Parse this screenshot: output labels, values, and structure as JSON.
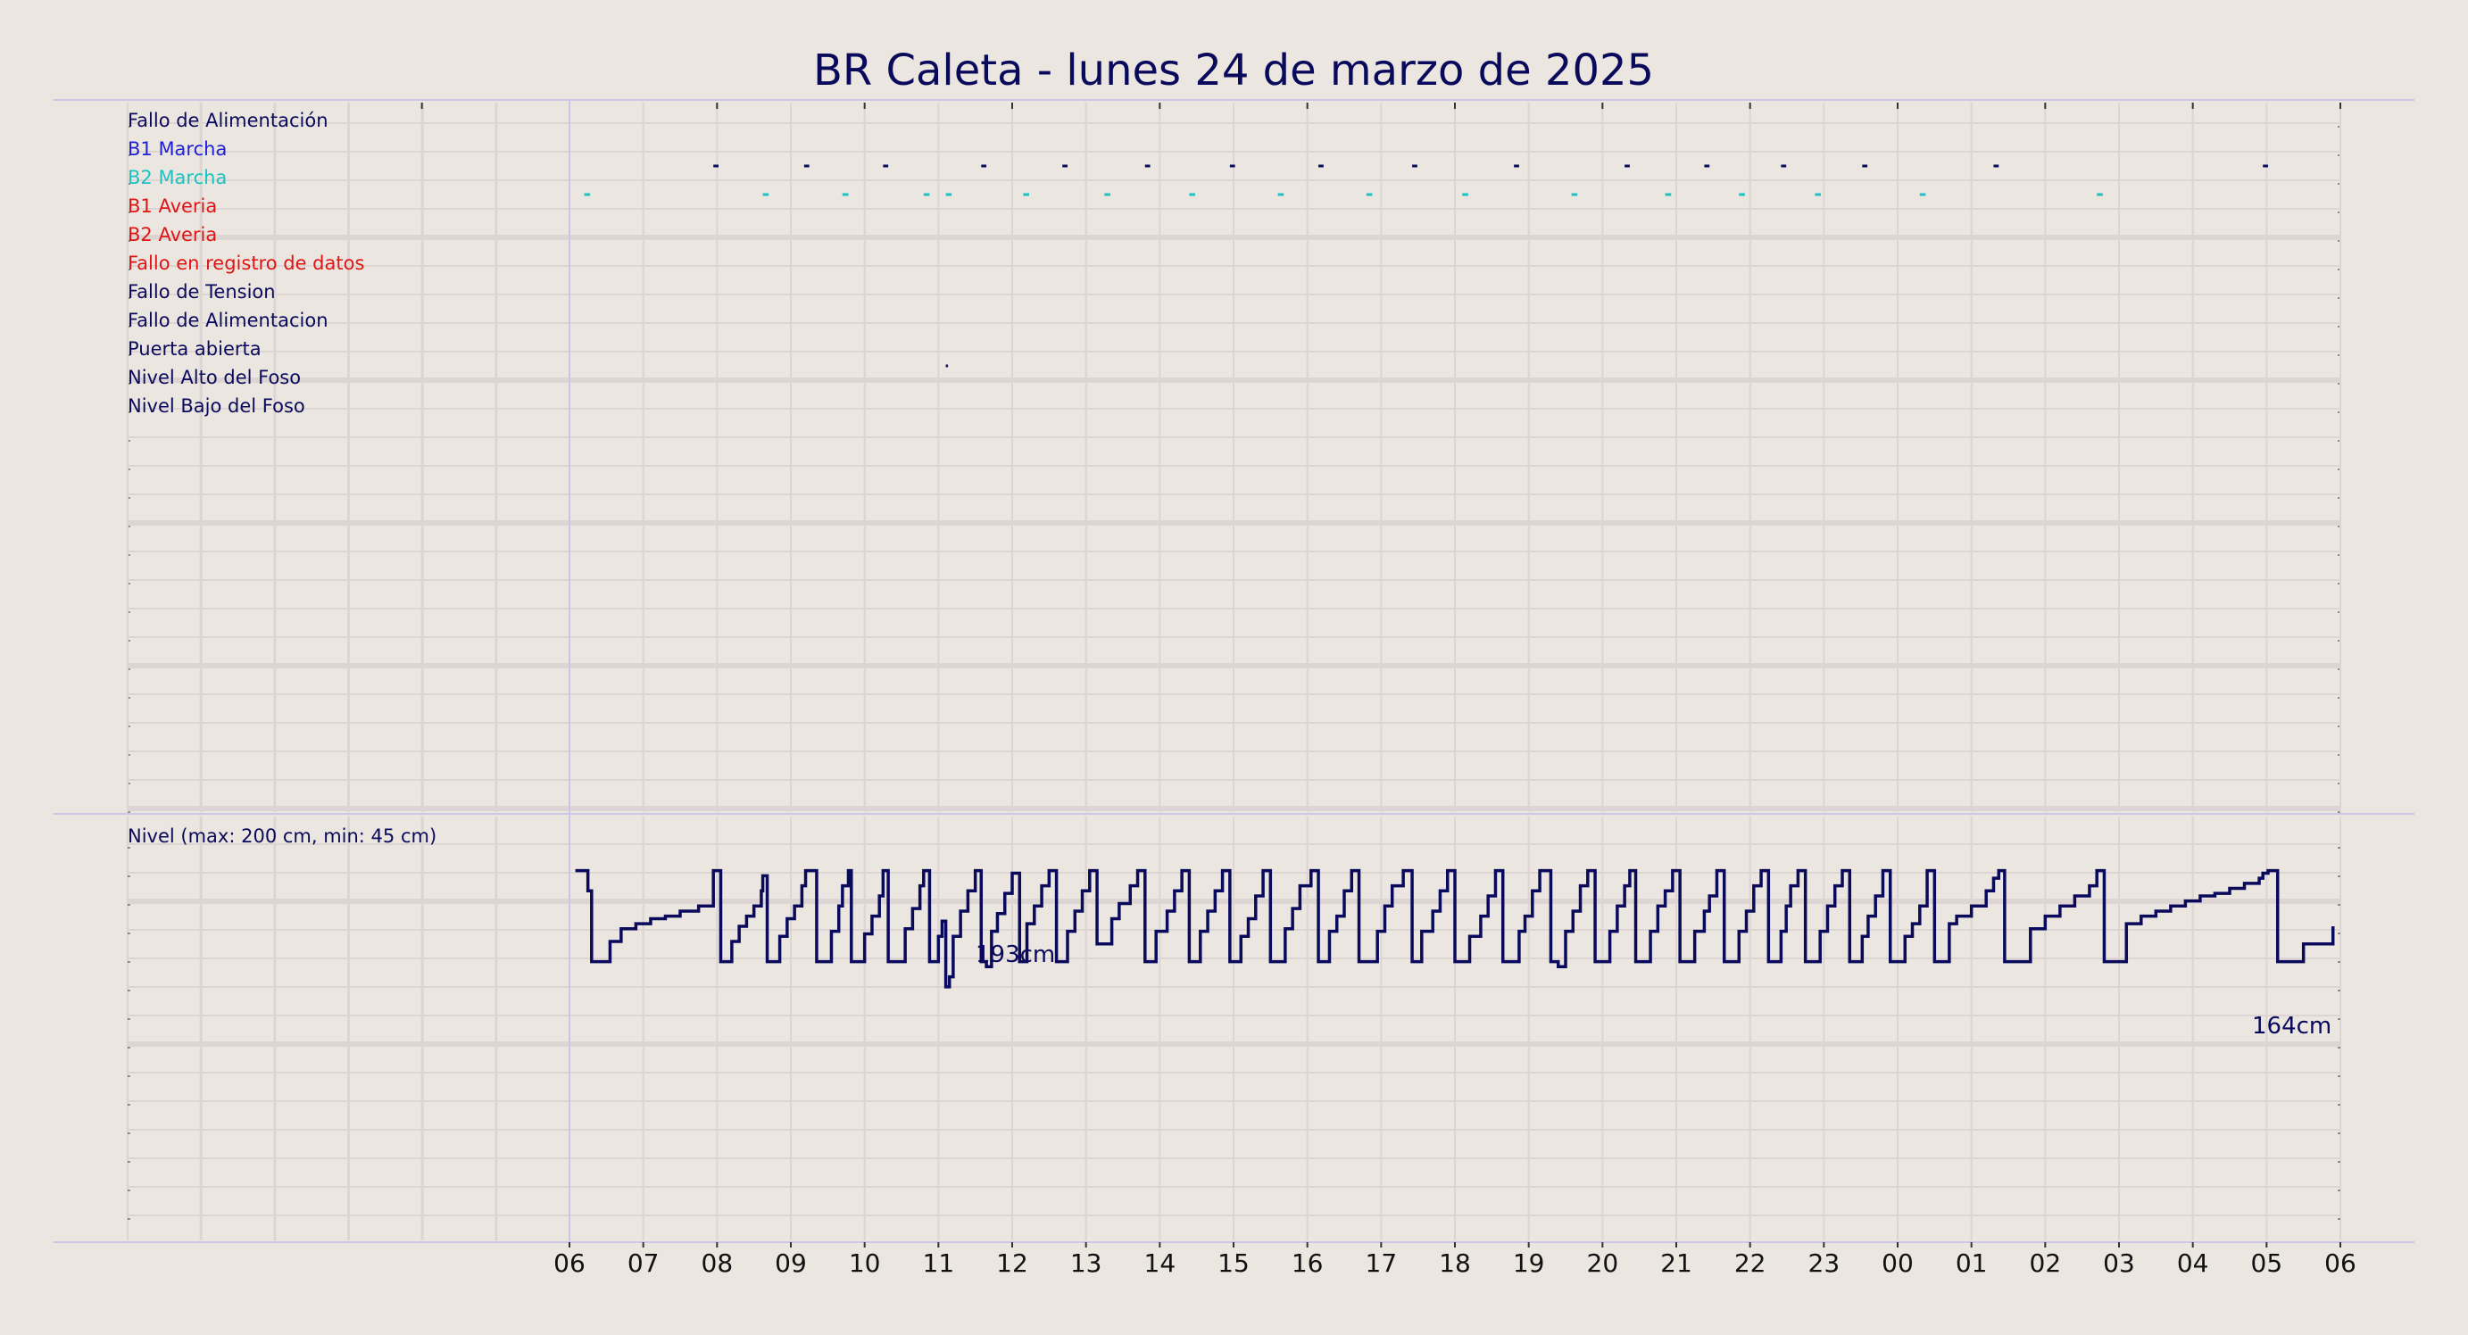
{
  "title": "BR Caleta   -   lunes 24 de marzo de 2025",
  "colors": {
    "background": "#ebe6e0",
    "grid": "#dcd5d3",
    "frame": "#c9c6e6",
    "navy": "#0a0a5c",
    "blue": "#1f1fd6",
    "cyan": "#1cc2c2",
    "red": "#e01414"
  },
  "chart_data": [
    {
      "type": "event-timeline",
      "x_ticks": [
        "06",
        "07",
        "08",
        "09",
        "10",
        "11",
        "12",
        "13",
        "14",
        "15",
        "16",
        "17",
        "18",
        "19",
        "20",
        "21",
        "22",
        "23",
        "00",
        "01",
        "02",
        "03",
        "04",
        "05",
        "06"
      ],
      "x_range_hours": [
        0,
        24
      ],
      "signals": [
        {
          "name": "Fallo de Alimentación",
          "color": "navy",
          "events": []
        },
        {
          "name": "B1 Marcha",
          "color": "navy",
          "events": [
            [
              1.95,
              2.02
            ],
            [
              3.18,
              3.25
            ],
            [
              4.25,
              4.32
            ],
            [
              5.58,
              5.65
            ],
            [
              6.68,
              6.75
            ],
            [
              7.8,
              7.87
            ],
            [
              8.95,
              9.02
            ],
            [
              10.15,
              10.22
            ],
            [
              11.42,
              11.49
            ],
            [
              12.8,
              12.87
            ],
            [
              14.3,
              14.37
            ],
            [
              15.38,
              15.45
            ],
            [
              16.42,
              16.49
            ],
            [
              17.52,
              17.59
            ],
            [
              19.3,
              19.37
            ],
            [
              22.95,
              23.02
            ]
          ]
        },
        {
          "name": "B2 Marcha",
          "color": "cyan",
          "events": [
            [
              0.2,
              0.28
            ],
            [
              2.62,
              2.7
            ],
            [
              3.7,
              3.78
            ],
            [
              4.8,
              4.88
            ],
            [
              5.1,
              5.18
            ],
            [
              6.15,
              6.23
            ],
            [
              7.25,
              7.33
            ],
            [
              8.4,
              8.48
            ],
            [
              9.6,
              9.68
            ],
            [
              10.8,
              10.88
            ],
            [
              12.1,
              12.18
            ],
            [
              13.58,
              13.66
            ],
            [
              14.85,
              14.93
            ],
            [
              15.85,
              15.93
            ],
            [
              16.88,
              16.96
            ],
            [
              18.3,
              18.38
            ],
            [
              20.7,
              20.78
            ]
          ]
        },
        {
          "name": "B1 Averia",
          "color": "red",
          "events": []
        },
        {
          "name": "B2 Averia",
          "color": "red",
          "events": []
        },
        {
          "name": "Fallo en registro de datos",
          "color": "red",
          "events": []
        },
        {
          "name": "Fallo de Tension",
          "color": "navy",
          "events": []
        },
        {
          "name": "Fallo de Alimentacion",
          "color": "navy",
          "events": []
        },
        {
          "name": "Puerta abierta",
          "color": "navy",
          "events": [
            [
              5.1,
              5.13
            ]
          ]
        },
        {
          "name": "Nivel Alto del Foso",
          "color": "navy",
          "events": []
        },
        {
          "name": "Nivel Bajo del Foso",
          "color": "navy",
          "events": []
        }
      ]
    },
    {
      "type": "line",
      "label": "Nivel (max: 200 cm, min: 45 cm)",
      "y_range_cm": [
        45,
        200
      ],
      "max_label": "193cm",
      "last_label": "164cm",
      "series_time_h": [
        0.08,
        0.2,
        0.25,
        0.3,
        0.45,
        0.55,
        0.7,
        0.9,
        1.1,
        1.3,
        1.5,
        1.75,
        1.95,
        1.98,
        2.05,
        2.1,
        2.2,
        2.3,
        2.4,
        2.5,
        2.6,
        2.62,
        2.68,
        2.75,
        2.85,
        2.95,
        3.05,
        3.15,
        3.2,
        3.27,
        3.35,
        3.45,
        3.55,
        3.65,
        3.7,
        3.78,
        3.82,
        3.9,
        4.0,
        4.1,
        4.2,
        4.25,
        4.32,
        4.45,
        4.55,
        4.65,
        4.75,
        4.8,
        4.88,
        4.95,
        5.0,
        5.05,
        5.1,
        5.15,
        5.2,
        5.3,
        5.4,
        5.5,
        5.58,
        5.65,
        5.72,
        5.8,
        5.9,
        6.0,
        6.1,
        6.15,
        6.2,
        6.3,
        6.4,
        6.5,
        6.6,
        6.68,
        6.75,
        6.85,
        6.95,
        7.05,
        7.15,
        7.25,
        7.35,
        7.45,
        7.6,
        7.7,
        7.8,
        7.87,
        7.95,
        8.1,
        8.2,
        8.3,
        8.4,
        8.45,
        8.55,
        8.65,
        8.75,
        8.85,
        8.95,
        9.02,
        9.1,
        9.2,
        9.3,
        9.4,
        9.5,
        9.6,
        9.7,
        9.8,
        9.9,
        10.05,
        10.15,
        10.22,
        10.3,
        10.4,
        10.5,
        10.6,
        10.7,
        10.85,
        10.95,
        11.05,
        11.15,
        11.3,
        11.42,
        11.49,
        11.55,
        11.7,
        11.8,
        11.9,
        12.0,
        12.1,
        12.2,
        12.35,
        12.45,
        12.55,
        12.65,
        12.8,
        12.87,
        12.95,
        13.05,
        13.15,
        13.3,
        13.4,
        13.5,
        13.6,
        13.7,
        13.8,
        13.9,
        14.0,
        14.1,
        14.2,
        14.3,
        14.37,
        14.45,
        14.55,
        14.65,
        14.75,
        14.85,
        14.95,
        15.05,
        15.15,
        15.25,
        15.38,
        15.45,
        15.55,
        15.65,
        15.75,
        15.85,
        15.95,
        16.05,
        16.15,
        16.25,
        16.35,
        16.42,
        16.49,
        16.55,
        16.65,
        16.75,
        16.85,
        16.95,
        17.05,
        17.15,
        17.25,
        17.35,
        17.45,
        17.52,
        17.6,
        17.7,
        17.8,
        17.9,
        18.0,
        18.1,
        18.2,
        18.3,
        18.4,
        18.5,
        18.6,
        18.7,
        18.8,
        19.0,
        19.2,
        19.3,
        19.37,
        19.45,
        19.6,
        19.8,
        20.0,
        20.2,
        20.4,
        20.6,
        20.7,
        20.8,
        20.9,
        21.1,
        21.3,
        21.5,
        21.7,
        21.9,
        22.1,
        22.3,
        22.5,
        22.7,
        22.9,
        22.95,
        23.02,
        23.15,
        23.3,
        23.5,
        23.7,
        23.9
      ],
      "series_level_cm": [
        186,
        186,
        178,
        150,
        150,
        158,
        163,
        165,
        167,
        168,
        170,
        172,
        186,
        186,
        150,
        150,
        158,
        164,
        168,
        172,
        178,
        184,
        150,
        150,
        160,
        167,
        172,
        180,
        186,
        186,
        150,
        150,
        162,
        172,
        180,
        186,
        150,
        150,
        161,
        168,
        176,
        186,
        150,
        150,
        163,
        171,
        180,
        186,
        150,
        150,
        160,
        166,
        140,
        144,
        160,
        170,
        178,
        186,
        150,
        148,
        162,
        169,
        177,
        185,
        150,
        150,
        165,
        172,
        180,
        186,
        150,
        150,
        162,
        170,
        178,
        186,
        157,
        157,
        167,
        173,
        180,
        186,
        150,
        150,
        162,
        170,
        178,
        186,
        150,
        150,
        162,
        170,
        178,
        186,
        150,
        150,
        160,
        167,
        176,
        186,
        150,
        150,
        163,
        171,
        180,
        186,
        150,
        150,
        162,
        168,
        178,
        186,
        150,
        150,
        162,
        172,
        180,
        186,
        150,
        150,
        162,
        170,
        178,
        186,
        150,
        150,
        160,
        168,
        176,
        186,
        150,
        150,
        162,
        168,
        178,
        186,
        150,
        148,
        162,
        170,
        180,
        186,
        150,
        150,
        162,
        172,
        180,
        186,
        150,
        150,
        162,
        172,
        178,
        186,
        150,
        150,
        162,
        170,
        176,
        186,
        150,
        150,
        162,
        170,
        180,
        186,
        150,
        150,
        162,
        172,
        180,
        186,
        150,
        150,
        162,
        172,
        180,
        186,
        150,
        150,
        160,
        168,
        176,
        186,
        150,
        150,
        160,
        165,
        172,
        186,
        150,
        150,
        165,
        168,
        172,
        178,
        183,
        186,
        150,
        150,
        163,
        168,
        172,
        176,
        180,
        186,
        150,
        150,
        165,
        168,
        170,
        172,
        174,
        176,
        177,
        179,
        181,
        183,
        185,
        186,
        150,
        150,
        157,
        157,
        164,
        165,
        166,
        166
      ]
    }
  ]
}
